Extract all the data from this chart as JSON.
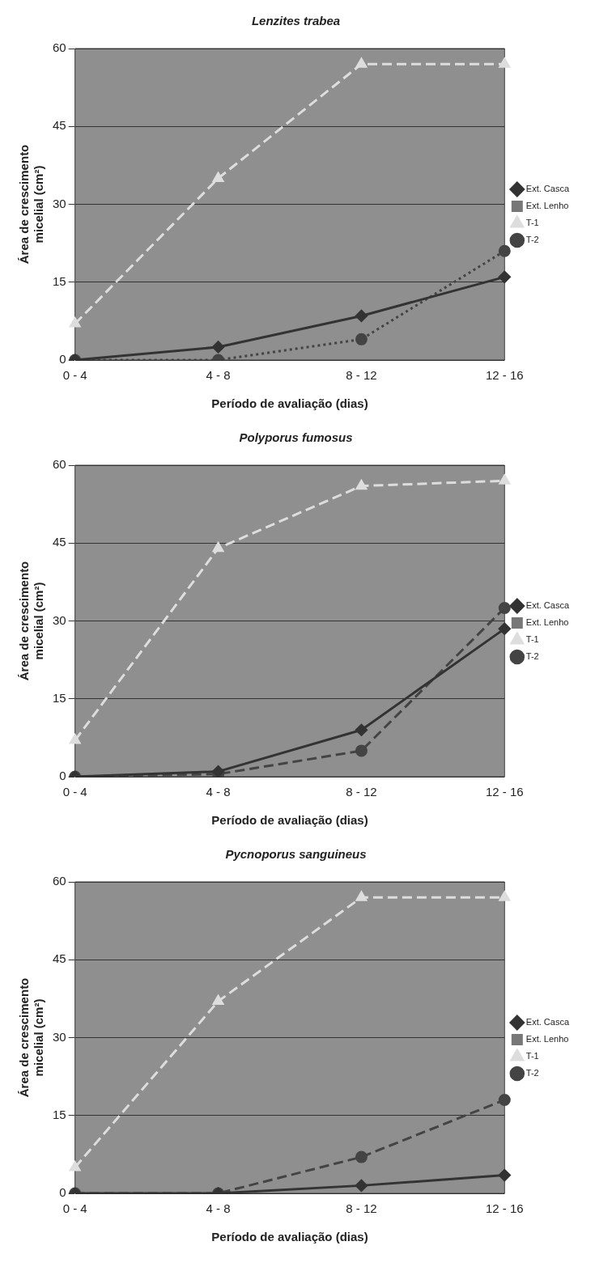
{
  "chart_data": [
    {
      "type": "line",
      "title": "Lenzites trabea",
      "xlabel": "Período de avaliação (dias)",
      "ylabel": "Área de crescimento micelial (cm²)",
      "categories": [
        "0 - 4",
        "4 - 8",
        "8 - 12",
        "12 - 16"
      ],
      "ylim": [
        0,
        60
      ],
      "yticks": [
        0,
        15,
        30,
        45,
        60
      ],
      "grid": "y",
      "legend": "right",
      "series": [
        {
          "name": "Ext. Casca",
          "color": "#333333",
          "marker": "diamond",
          "line_style": "solid",
          "values": [
            0,
            2.5,
            8.5,
            16
          ]
        },
        {
          "name": "Ext. Lenho",
          "color": "#777777",
          "marker": "square",
          "line_style": "solid",
          "values": [
            null,
            null,
            null,
            null
          ]
        },
        {
          "name": "T-1",
          "color": "#dddddd",
          "marker": "triangle",
          "line_style": "dashed",
          "values": [
            7,
            35,
            57,
            57
          ]
        },
        {
          "name": "T-2",
          "color": "#444444",
          "marker": "circle",
          "line_style": "dotted",
          "values": [
            0,
            0,
            4,
            21
          ]
        }
      ]
    },
    {
      "type": "line",
      "title": "Polyporus fumosus",
      "xlabel": "Período de avaliação (dias)",
      "ylabel": "Área de crescimento micelial (cm²)",
      "categories": [
        "0 - 4",
        "4 - 8",
        "8 - 12",
        "12 - 16"
      ],
      "ylim": [
        0,
        60
      ],
      "yticks": [
        0,
        15,
        30,
        45,
        60
      ],
      "grid": "y",
      "legend": "right",
      "series": [
        {
          "name": "Ext. Casca",
          "color": "#333333",
          "marker": "diamond",
          "line_style": "solid",
          "values": [
            0,
            1,
            9,
            28.5
          ]
        },
        {
          "name": "Ext. Lenho",
          "color": "#777777",
          "marker": "square",
          "line_style": "solid",
          "values": [
            null,
            null,
            null,
            null
          ]
        },
        {
          "name": "T-1",
          "color": "#dddddd",
          "marker": "triangle",
          "line_style": "dashed",
          "values": [
            7,
            44,
            56,
            57
          ]
        },
        {
          "name": "T-2",
          "color": "#444444",
          "marker": "circle",
          "line_style": "dashed",
          "values": [
            0,
            0.5,
            5,
            32.5
          ]
        }
      ]
    },
    {
      "type": "line",
      "title": "Pycnoporus sanguineus",
      "xlabel": "Período de avaliação (dias)",
      "ylabel": "Área de crescimento micelial (cm²)",
      "categories": [
        "0 - 4",
        "4 - 8",
        "8 - 12",
        "12 - 16"
      ],
      "ylim": [
        0,
        60
      ],
      "yticks": [
        0,
        15,
        30,
        45,
        60
      ],
      "grid": "y",
      "legend": "right",
      "series": [
        {
          "name": "Ext. Casca",
          "color": "#333333",
          "marker": "diamond",
          "line_style": "solid",
          "values": [
            0,
            0,
            1.5,
            3.5
          ]
        },
        {
          "name": "Ext. Lenho",
          "color": "#777777",
          "marker": "square",
          "line_style": "solid",
          "values": [
            null,
            null,
            null,
            null
          ]
        },
        {
          "name": "T-1",
          "color": "#dddddd",
          "marker": "triangle",
          "line_style": "dashed",
          "values": [
            5,
            37,
            57,
            57
          ]
        },
        {
          "name": "T-2",
          "color": "#444444",
          "marker": "circle",
          "line_style": "dashed",
          "values": [
            0,
            0,
            7,
            18
          ]
        }
      ]
    }
  ]
}
